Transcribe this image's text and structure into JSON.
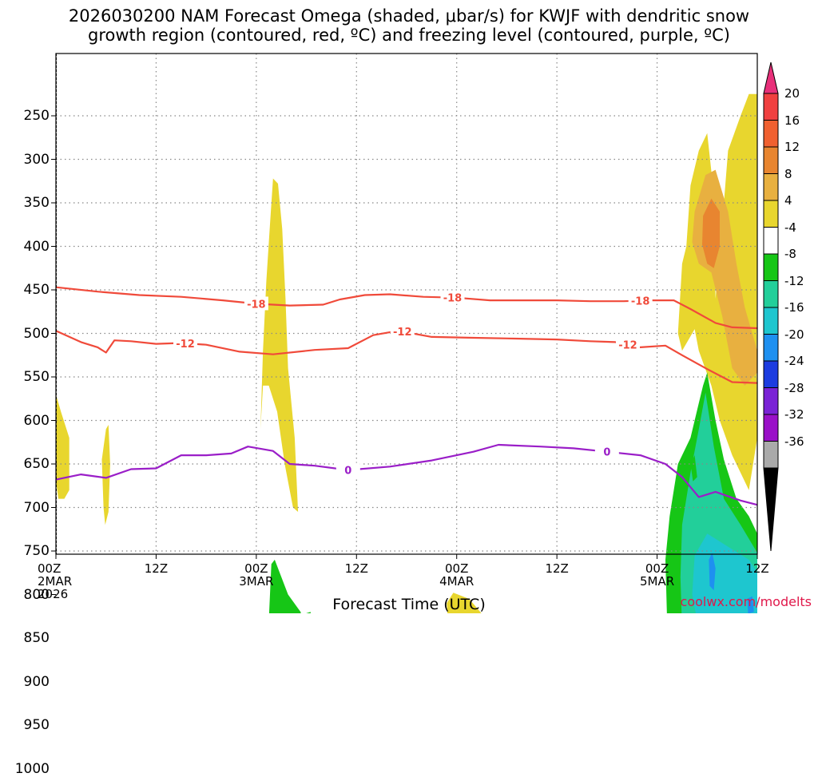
{
  "title_line1": "2026030200 NAM Forecast Omega (shaded, μbar/s) for KWJF with dendritic snow",
  "title_line2": "growth region (contoured, red, ºC) and freezing level (contoured, purple, ºC)",
  "xlabel": "Forecast Time (UTC)",
  "credit": "coolwx.com/modelts",
  "chart_data": {
    "type": "heatmap",
    "title": "2026030200 NAM Forecast Omega (shaded, μbar/s) for KWJF with dendritic snow growth region (contoured, red, ºC) and freezing level (contoured, purple, ºC)",
    "xlabel": "Forecast Time (UTC)",
    "ylabel": "Pressure (mb)",
    "xlim_hours": [
      0,
      84
    ],
    "ylim_mb": [
      1050,
      200
    ],
    "y_ticks": [
      "250",
      "300",
      "350",
      "400",
      "450",
      "500",
      "550",
      "600",
      "650",
      "700",
      "750",
      "800",
      "850",
      "900",
      "950",
      "1000"
    ],
    "x_ticks": [
      {
        "hour": 0,
        "l1": "00Z",
        "l2": "2MAR",
        "l3": "2026"
      },
      {
        "hour": 12,
        "l1": "12Z",
        "l2": "",
        "l3": ""
      },
      {
        "hour": 24,
        "l1": "00Z",
        "l2": "3MAR",
        "l3": ""
      },
      {
        "hour": 36,
        "l1": "12Z",
        "l2": "",
        "l3": ""
      },
      {
        "hour": 48,
        "l1": "00Z",
        "l2": "4MAR",
        "l3": ""
      },
      {
        "hour": 60,
        "l1": "12Z",
        "l2": "",
        "l3": ""
      },
      {
        "hour": 72,
        "l1": "00Z",
        "l2": "5MAR",
        "l3": ""
      },
      {
        "hour": 84,
        "l1": "12Z",
        "l2": "",
        "l3": ""
      }
    ],
    "ground_top_mb": 928,
    "contours": [
      {
        "name": "-18",
        "color": "#f04a3a",
        "label": "-18",
        "points": [
          [
            0,
            447
          ],
          [
            5,
            452
          ],
          [
            10,
            456
          ],
          [
            15,
            458
          ],
          [
            20,
            462
          ],
          [
            24,
            466
          ],
          [
            28,
            468
          ],
          [
            32,
            467
          ],
          [
            34,
            461
          ],
          [
            37,
            456
          ],
          [
            40,
            455
          ],
          [
            44,
            458
          ],
          [
            48,
            459
          ],
          [
            52,
            462
          ],
          [
            56,
            462
          ],
          [
            60,
            462
          ],
          [
            64,
            463
          ],
          [
            68,
            463
          ],
          [
            71,
            462
          ],
          [
            74,
            462
          ],
          [
            76,
            472
          ],
          [
            79,
            488
          ],
          [
            81,
            493
          ],
          [
            84,
            494
          ]
        ],
        "label_hours": [
          24,
          47.5,
          70
        ]
      },
      {
        "name": "-12",
        "color": "#f04a3a",
        "label": "-12",
        "points": [
          [
            0,
            497
          ],
          [
            3,
            510
          ],
          [
            5,
            516
          ],
          [
            6,
            522
          ],
          [
            7,
            508
          ],
          [
            9,
            509
          ],
          [
            12,
            512
          ],
          [
            15,
            511
          ],
          [
            18,
            513
          ],
          [
            22,
            521
          ],
          [
            26,
            524
          ],
          [
            31,
            519
          ],
          [
            35,
            517
          ],
          [
            38,
            502
          ],
          [
            41,
            497
          ],
          [
            45,
            504
          ],
          [
            50,
            505
          ],
          [
            55,
            506
          ],
          [
            60,
            507
          ],
          [
            64,
            509
          ],
          [
            67,
            510
          ],
          [
            70,
            516
          ],
          [
            73,
            514
          ],
          [
            75,
            525
          ],
          [
            78,
            541
          ],
          [
            81,
            556
          ],
          [
            84,
            557
          ]
        ],
        "label_hours": [
          15.5,
          41.5,
          68.5
        ]
      },
      {
        "name": "0",
        "color": "#9a1ec8",
        "label": "0",
        "points": [
          [
            0,
            668
          ],
          [
            3,
            662
          ],
          [
            6,
            666
          ],
          [
            9,
            656
          ],
          [
            12,
            655
          ],
          [
            15,
            640
          ],
          [
            18,
            640
          ],
          [
            21,
            638
          ],
          [
            23,
            630
          ],
          [
            26,
            635
          ],
          [
            28,
            650
          ],
          [
            31,
            652
          ],
          [
            35,
            657
          ],
          [
            40,
            653
          ],
          [
            45,
            646
          ],
          [
            50,
            636
          ],
          [
            53,
            628
          ],
          [
            58,
            630
          ],
          [
            62,
            632
          ],
          [
            66,
            636
          ],
          [
            70,
            640
          ],
          [
            73,
            650
          ],
          [
            75,
            665
          ],
          [
            77,
            688
          ],
          [
            79,
            682
          ],
          [
            82,
            692
          ],
          [
            84,
            697
          ]
        ],
        "label_hours": [
          35,
          66
        ]
      }
    ],
    "omega_regions": [
      {
        "level": "4 to 8",
        "color": "#e8d62e",
        "points": [
          [
            24.5,
            610
          ],
          [
            24.8,
            520
          ],
          [
            25.2,
            440
          ],
          [
            25.6,
            380
          ],
          [
            26,
            322
          ],
          [
            26.6,
            328
          ],
          [
            27.1,
            380
          ],
          [
            27.5,
            460
          ],
          [
            27.8,
            540
          ],
          [
            28.6,
            620
          ],
          [
            29,
            705
          ],
          [
            28.4,
            700
          ],
          [
            27.4,
            650
          ],
          [
            26.5,
            590
          ],
          [
            25.5,
            560
          ],
          [
            24.8,
            560
          ]
        ]
      },
      {
        "level": "4 to 8",
        "color": "#e8d62e",
        "points": [
          [
            0,
            570
          ],
          [
            0.6,
            590
          ],
          [
            1.6,
            620
          ],
          [
            1.6,
            680
          ],
          [
            1,
            690
          ],
          [
            0.3,
            690
          ],
          [
            0,
            670
          ]
        ]
      },
      {
        "level": "4 to 8",
        "color": "#e8d62e",
        "points": [
          [
            5.5,
            645
          ],
          [
            6,
            610
          ],
          [
            6.3,
            605
          ],
          [
            6.5,
            650
          ],
          [
            6.3,
            705
          ],
          [
            5.9,
            720
          ],
          [
            5.7,
            700
          ]
        ]
      },
      {
        "level": "4 to 8",
        "color": "#e8d62e",
        "points": [
          [
            2,
            912
          ],
          [
            3.8,
            882
          ],
          [
            5,
            885
          ],
          [
            5.5,
            907
          ],
          [
            6,
            916
          ],
          [
            2.5,
            920
          ]
        ]
      },
      {
        "level": "4 to 8",
        "color": "#e8d62e",
        "points": [
          [
            46.8,
            810
          ],
          [
            47.6,
            798
          ],
          [
            49.5,
            805
          ],
          [
            51,
            822
          ],
          [
            50.5,
            838
          ],
          [
            49,
            842
          ],
          [
            47,
            838
          ]
        ]
      },
      {
        "level": "4 to 8",
        "color": "#e8d62e",
        "points": [
          [
            70.5,
            888
          ],
          [
            71,
            884
          ],
          [
            71.5,
            888
          ],
          [
            71,
            893
          ]
        ]
      },
      {
        "level": "4 to 8",
        "color": "#e8d62e",
        "points": [
          [
            79,
            460
          ],
          [
            80,
            350
          ],
          [
            80.5,
            290
          ],
          [
            82,
            250
          ],
          [
            83,
            225
          ],
          [
            84,
            225
          ],
          [
            84,
            330
          ],
          [
            83.9,
            540
          ],
          [
            84,
            620
          ],
          [
            83,
            680
          ],
          [
            81,
            640
          ],
          [
            79.5,
            600
          ],
          [
            78.5,
            560
          ],
          [
            77,
            520
          ],
          [
            76.5,
            495
          ],
          [
            75,
            520
          ],
          [
            74.5,
            500
          ],
          [
            75,
            420
          ],
          [
            75.5,
            400
          ],
          [
            76,
            330
          ],
          [
            77,
            290
          ],
          [
            78,
            270
          ],
          [
            78.8,
            340
          ]
        ]
      },
      {
        "level": "8 to 12",
        "color": "#e8b040",
        "points": [
          [
            76.5,
            360
          ],
          [
            77.8,
            318
          ],
          [
            79,
            312
          ],
          [
            80.5,
            360
          ],
          [
            81.5,
            420
          ],
          [
            82.5,
            470
          ],
          [
            84,
            520
          ],
          [
            84,
            545
          ],
          [
            82.5,
            560
          ],
          [
            81,
            540
          ],
          [
            79.8,
            480
          ],
          [
            78.5,
            430
          ],
          [
            77,
            420
          ],
          [
            76.2,
            395
          ]
        ]
      },
      {
        "level": "12 to 16",
        "color": "#e88530",
        "points": [
          [
            77.5,
            365
          ],
          [
            78.5,
            345
          ],
          [
            79.5,
            360
          ],
          [
            79.5,
            400
          ],
          [
            78.8,
            425
          ],
          [
            78,
            420
          ],
          [
            77.4,
            398
          ]
        ]
      },
      {
        "level": "-4 to -8",
        "color": "#16c616",
        "points": [
          [
            25.5,
            830
          ],
          [
            25.8,
            765
          ],
          [
            26.2,
            760
          ],
          [
            27.8,
            800
          ],
          [
            29.3,
            820
          ],
          [
            30,
            850
          ],
          [
            29.8,
            868
          ],
          [
            27.5,
            870
          ],
          [
            26,
            856
          ]
        ]
      },
      {
        "level": "-4 to -8",
        "color": "#16c616",
        "points": [
          [
            29.8,
            822
          ],
          [
            30.5,
            820
          ],
          [
            30.6,
            836
          ],
          [
            29.9,
            836
          ]
        ]
      },
      {
        "level": "-4 to -8",
        "color": "#16c616",
        "points": [
          [
            34.5,
            866
          ],
          [
            35.5,
            856
          ],
          [
            37.5,
            857
          ],
          [
            39.5,
            862
          ],
          [
            40,
            875
          ],
          [
            40.6,
            885
          ],
          [
            38,
            889
          ],
          [
            35,
            885
          ],
          [
            34.2,
            876
          ]
        ]
      },
      {
        "level": "-4 to -8",
        "color": "#16c616",
        "points": [
          [
            73.5,
            710
          ],
          [
            74.5,
            650
          ],
          [
            76,
            620
          ],
          [
            77,
            580
          ],
          [
            77.5,
            560
          ],
          [
            78,
            545
          ],
          [
            79,
            600
          ],
          [
            80,
            645
          ],
          [
            81.5,
            690
          ],
          [
            83,
            710
          ],
          [
            84,
            730
          ],
          [
            84,
            905
          ],
          [
            82,
            910
          ],
          [
            79,
            900
          ],
          [
            76,
            890
          ],
          [
            74,
            870
          ],
          [
            73.2,
            830
          ],
          [
            73,
            760
          ]
        ]
      },
      {
        "level": "-8 to -12",
        "color": "#22cf9a",
        "points": [
          [
            75,
            720
          ],
          [
            76,
            660
          ],
          [
            77,
            610
          ],
          [
            77.8,
            568
          ],
          [
            78.8,
            630
          ],
          [
            80,
            690
          ],
          [
            82,
            720
          ],
          [
            84,
            752
          ],
          [
            84,
            880
          ],
          [
            81,
            885
          ],
          [
            78,
            875
          ],
          [
            76,
            862
          ],
          [
            75,
            840
          ],
          [
            74.8,
            780
          ]
        ]
      },
      {
        "level": "-12 to -16",
        "color": "#1ec6cf",
        "points": [
          [
            76.5,
            755
          ],
          [
            78,
            730
          ],
          [
            80.5,
            745
          ],
          [
            83,
            760
          ],
          [
            84,
            775
          ],
          [
            84,
            860
          ],
          [
            82,
            860
          ],
          [
            79,
            855
          ],
          [
            77,
            840
          ],
          [
            76.2,
            800
          ]
        ]
      },
      {
        "level": "-16 to -20",
        "color": "#1e90f0",
        "points": [
          [
            78.2,
            760
          ],
          [
            78.6,
            752
          ],
          [
            79,
            770
          ],
          [
            78.8,
            795
          ],
          [
            78.3,
            790
          ]
        ]
      },
      {
        "level": "-16 to -20",
        "color": "#1e90f0",
        "points": [
          [
            82.8,
            805
          ],
          [
            83.4,
            802
          ],
          [
            83.6,
            820
          ],
          [
            82.9,
            822
          ]
        ]
      },
      {
        "level": "-4 to -8",
        "color": "#16c616",
        "points": [
          [
            76,
            650
          ],
          [
            76.5,
            640
          ],
          [
            76.8,
            665
          ],
          [
            76.3,
            670
          ]
        ]
      }
    ],
    "colorbar": {
      "units": "μbar/s",
      "labels": [
        "20",
        "16",
        "12",
        "8",
        "4",
        "-4",
        "-8",
        "-12",
        "-16",
        "-20",
        "-24",
        "-28",
        "-32",
        "-36"
      ],
      "colors": [
        "#e8307a",
        "#f04040",
        "#f06030",
        "#e88530",
        "#e8b040",
        "#e8d62e",
        "#ffffff",
        "#16c616",
        "#22cf9a",
        "#1ec6cf",
        "#1e90f0",
        "#1c3ce0",
        "#7a22d6",
        "#9a10c8",
        "#aaaaaa",
        "#000000"
      ]
    }
  }
}
